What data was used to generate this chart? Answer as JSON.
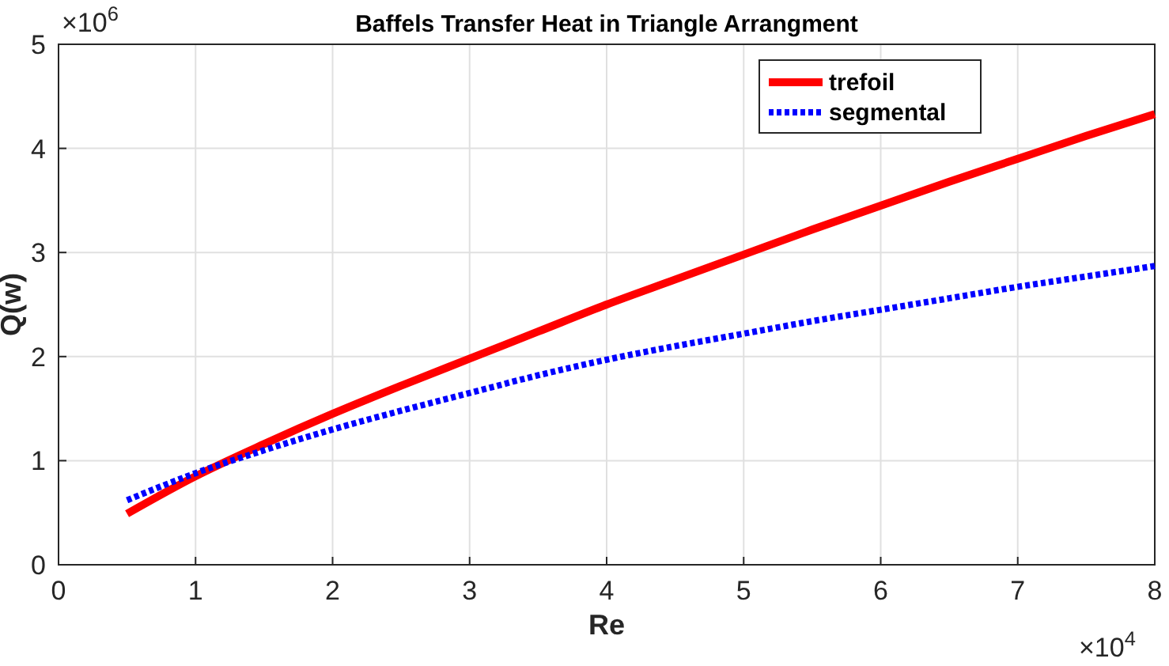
{
  "chart_data": {
    "type": "line",
    "title": "Baffels Transfer Heat in Triangle Arrangment",
    "xlabel": "Re",
    "ylabel": "Q(w)",
    "annotations": [
      "×10$^{4}$",
      "×10$^{6}$"
    ],
    "x": [
      0.5,
      1,
      1.5,
      2,
      2.5,
      3,
      3.5,
      4,
      4.5,
      5,
      5.5,
      6,
      6.5,
      7,
      7.5,
      8
    ],
    "series": [
      {
        "name": "trefoil",
        "color": "#ff0000",
        "line_style": "solid",
        "values": [
          0.49,
          0.85,
          1.16,
          1.45,
          1.72,
          1.98,
          2.24,
          2.5,
          2.74,
          2.98,
          3.22,
          3.45,
          3.68,
          3.9,
          4.12,
          4.33
        ]
      },
      {
        "name": "segmental",
        "color": "#0000ff",
        "line_style": "dotted",
        "values": [
          0.62,
          0.88,
          1.1,
          1.3,
          1.48,
          1.65,
          1.82,
          1.97,
          2.1,
          2.22,
          2.34,
          2.45,
          2.56,
          2.67,
          2.77,
          2.87
        ]
      }
    ],
    "xlim": [
      0,
      8
    ],
    "xticks": [
      0,
      1,
      2,
      3,
      4,
      5,
      6,
      7,
      8
    ],
    "ylim": [
      0,
      5
    ],
    "yticks": [
      0,
      1,
      2,
      3,
      4,
      5
    ],
    "grid": true,
    "legend": "top right"
  }
}
